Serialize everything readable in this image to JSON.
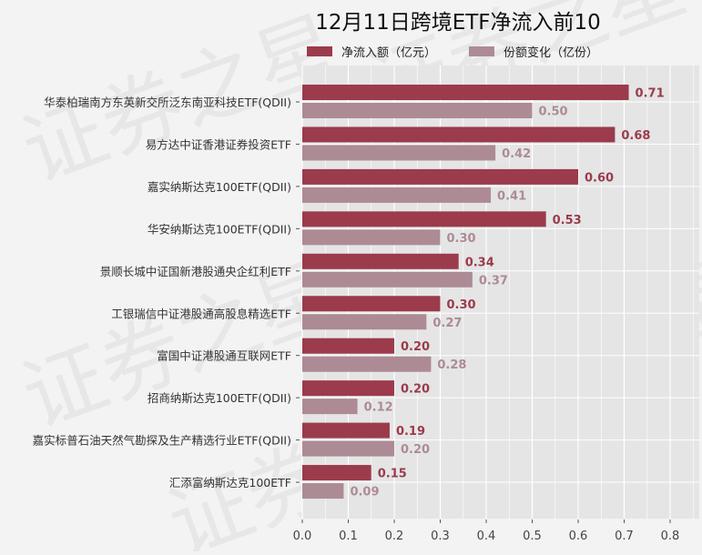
{
  "chart_data": {
    "type": "bar",
    "orientation": "horizontal",
    "title": "12月11日跨境ETF净流入前10",
    "categories": [
      "华泰柏瑞南方东英新交所泛东南亚科技ETF(QDII)",
      "易方达中证香港证券投资ETF",
      "嘉实纳斯达克100ETF(QDII)",
      "华安纳斯达克100ETF(QDII)",
      "景顺长城中证国新港股通央企红利ETF",
      "工银瑞信中证港股通高股息精选ETF",
      "富国中证港股通互联网ETF",
      "招商纳斯达克100ETF(QDII)",
      "嘉实标普石油天然气勘探及生产精选行业ETF(QDII)",
      "汇添富纳斯达克100ETF"
    ],
    "series": [
      {
        "name": "净流入额（亿元）",
        "color": "#9b3b4b",
        "labels": [
          "0.71",
          "0.68",
          "0.60",
          "0.53",
          "0.34",
          "0.30",
          "0.20",
          "0.20",
          "0.19",
          "0.15"
        ],
        "values": [
          0.71,
          0.68,
          0.6,
          0.53,
          0.34,
          0.3,
          0.2,
          0.2,
          0.19,
          0.15
        ]
      },
      {
        "name": "份额变化（亿份）",
        "color": "#ad8b94",
        "labels": [
          "0.50",
          "0.42",
          "0.41",
          "0.30",
          "0.37",
          "0.27",
          "0.28",
          "0.12",
          "0.20",
          "0.09"
        ],
        "values": [
          0.5,
          0.42,
          0.41,
          0.3,
          0.37,
          0.27,
          0.28,
          0.12,
          0.2,
          0.09
        ]
      }
    ],
    "xlim": [
      0,
      0.85
    ],
    "xticks": [
      "0.0",
      "0.1",
      "0.2",
      "0.3",
      "0.4",
      "0.5",
      "0.6",
      "0.7",
      "0.8"
    ],
    "xtick_values": [
      0,
      0.1,
      0.2,
      0.3,
      0.4,
      0.5,
      0.6,
      0.7,
      0.8
    ],
    "grid": true,
    "legend_position": "top",
    "xlabel": "",
    "ylabel": ""
  },
  "watermark": "证券之星"
}
